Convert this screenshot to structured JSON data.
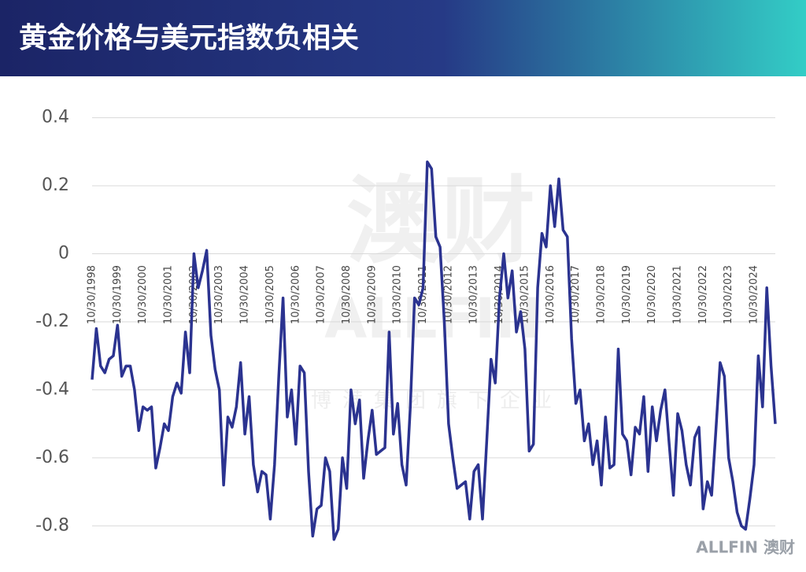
{
  "chart_data": {
    "type": "line",
    "title": "黄金价格与美元指数负相关",
    "watermark": [
      "澳财",
      "ALLFIN",
      "博满集团旗下企业"
    ],
    "logo": "ALLFIN 澳财",
    "ylim": [
      -0.85,
      0.45
    ],
    "yticks": [
      0.4,
      0.2,
      0,
      -0.2,
      -0.4,
      -0.6,
      -0.8
    ],
    "grid": true,
    "categories": [
      "10/30/1998",
      null,
      null,
      null,
      null,
      null,
      "10/30/1999",
      null,
      null,
      null,
      null,
      null,
      "10/30/2000",
      null,
      null,
      null,
      null,
      null,
      "10/30/2001",
      null,
      null,
      null,
      null,
      null,
      "10/30/2002",
      null,
      null,
      null,
      null,
      null,
      "10/30/2003",
      null,
      null,
      null,
      null,
      null,
      "10/30/2004",
      null,
      null,
      null,
      null,
      null,
      "10/30/2005",
      null,
      null,
      null,
      null,
      null,
      "10/30/2006",
      null,
      null,
      null,
      null,
      null,
      "10/30/2007",
      null,
      null,
      null,
      null,
      null,
      "10/30/2008",
      null,
      null,
      null,
      null,
      null,
      "10/30/2009",
      null,
      null,
      null,
      null,
      null,
      "10/30/2010",
      null,
      null,
      null,
      null,
      null,
      "10/30/2011",
      null,
      null,
      null,
      null,
      null,
      "10/30/2012",
      null,
      null,
      null,
      null,
      null,
      "10/30/2013",
      null,
      null,
      null,
      null,
      null,
      "10/30/2014",
      null,
      null,
      null,
      null,
      null,
      "10/30/2015",
      null,
      null,
      null,
      null,
      null,
      "10/30/2016",
      null,
      null,
      null,
      null,
      null,
      "10/30/2017",
      null,
      null,
      null,
      null,
      null,
      "10/30/2018",
      null,
      null,
      null,
      null,
      null,
      "10/30/2019",
      null,
      null,
      null,
      null,
      null,
      "10/30/2020",
      null,
      null,
      null,
      null,
      null,
      "10/30/2021",
      null,
      null,
      null,
      null,
      null,
      "10/30/2022",
      null,
      null,
      null,
      null,
      null,
      "10/30/2023",
      null,
      null,
      null,
      null,
      null,
      "10/30/2024",
      null,
      null,
      null,
      null,
      null
    ],
    "series": [
      {
        "color": "#2b3390",
        "values": [
          -0.37,
          -0.22,
          -0.33,
          -0.35,
          -0.31,
          -0.3,
          -0.21,
          -0.36,
          -0.33,
          -0.33,
          -0.4,
          -0.52,
          -0.45,
          -0.46,
          -0.45,
          -0.63,
          -0.57,
          -0.5,
          -0.52,
          -0.42,
          -0.38,
          -0.41,
          -0.23,
          -0.35,
          0.0,
          -0.1,
          -0.05,
          0.01,
          -0.24,
          -0.34,
          -0.4,
          -0.68,
          -0.48,
          -0.51,
          -0.45,
          -0.32,
          -0.53,
          -0.42,
          -0.62,
          -0.7,
          -0.64,
          -0.65,
          -0.78,
          -0.62,
          -0.36,
          -0.13,
          -0.48,
          -0.4,
          -0.56,
          -0.33,
          -0.35,
          -0.64,
          -0.83,
          -0.75,
          -0.74,
          -0.6,
          -0.64,
          -0.84,
          -0.81,
          -0.6,
          -0.69,
          -0.4,
          -0.5,
          -0.43,
          -0.66,
          -0.55,
          -0.46,
          -0.59,
          -0.58,
          -0.57,
          -0.23,
          -0.53,
          -0.44,
          -0.62,
          -0.68,
          -0.45,
          -0.13,
          -0.15,
          -0.1,
          0.27,
          0.25,
          0.05,
          0.02,
          -0.2,
          -0.5,
          -0.6,
          -0.69,
          -0.68,
          -0.67,
          -0.78,
          -0.64,
          -0.62,
          -0.78,
          -0.55,
          -0.31,
          -0.38,
          -0.13,
          0.0,
          -0.13,
          -0.05,
          -0.23,
          -0.17,
          -0.28,
          -0.58,
          -0.56,
          -0.1,
          0.06,
          0.02,
          0.2,
          0.08,
          0.22,
          0.07,
          0.05,
          -0.25,
          -0.44,
          -0.4,
          -0.55,
          -0.5,
          -0.62,
          -0.55,
          -0.68,
          -0.48,
          -0.63,
          -0.62,
          -0.28,
          -0.53,
          -0.55,
          -0.65,
          -0.51,
          -0.53,
          -0.42,
          -0.64,
          -0.45,
          -0.55,
          -0.46,
          -0.4,
          -0.56,
          -0.71,
          -0.47,
          -0.52,
          -0.62,
          -0.68,
          -0.54,
          -0.51,
          -0.75,
          -0.67,
          -0.71,
          -0.52,
          -0.32,
          -0.36,
          -0.6,
          -0.67,
          -0.76,
          -0.8,
          -0.81,
          -0.72,
          -0.62,
          -0.3,
          -0.45,
          -0.1,
          -0.33,
          -0.5
        ]
      }
    ]
  }
}
